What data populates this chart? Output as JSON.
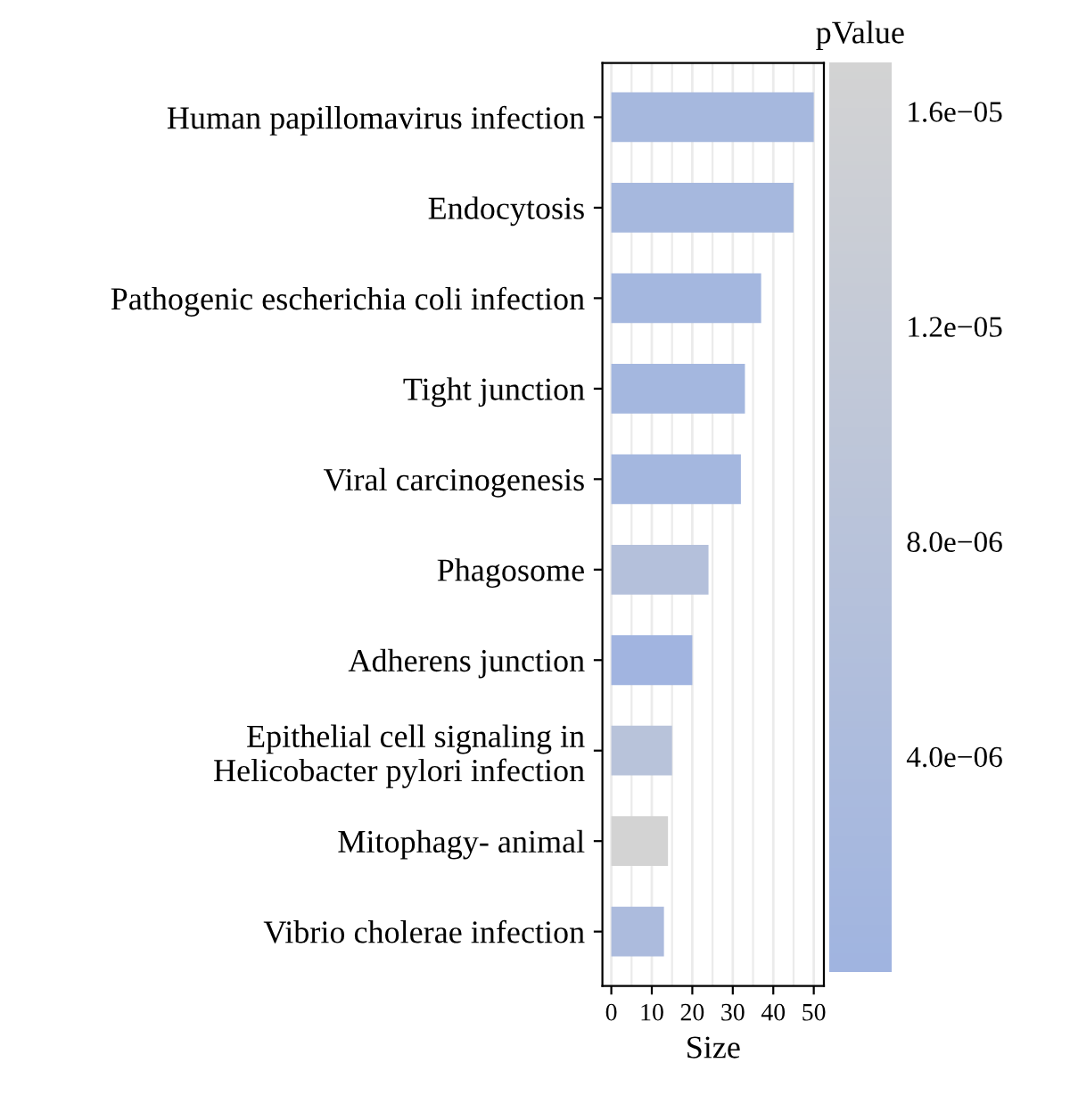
{
  "chart_data": {
    "type": "bar",
    "orientation": "horizontal",
    "xlabel": "Size",
    "clabel": "pValue",
    "categories": [
      "Human papillomavirus infection",
      "Endocytosis",
      "Pathogenic escherichia coli infection",
      "Tight junction",
      "Viral carcinogenesis",
      "Phagosome",
      "Adherens junction",
      "Epithelial cell signaling in\nHelicobacter pylori infection",
      "Mitophagy- animal",
      "Vibrio cholerae infection"
    ],
    "values": [
      50,
      45,
      37,
      33,
      32,
      24,
      20,
      15,
      14,
      13
    ],
    "cvalues": [
      2e-06,
      2e-06,
      1.5e-06,
      1.5e-06,
      1.5e-06,
      6.5e-06,
      2e-07,
      8e-06,
      1.69e-05,
      4e-06
    ],
    "xlim": [
      -2.2,
      52.5
    ],
    "xticks": [
      0,
      10,
      20,
      30,
      40,
      50
    ],
    "clim": [
      0,
      1.69e-05
    ],
    "cticks": [
      {
        "value": 4e-06,
        "label": "4.0e−06"
      },
      {
        "value": 8e-06,
        "label": "8.0e−06"
      },
      {
        "value": 1.2e-05,
        "label": "1.2e−05"
      },
      {
        "value": 1.6e-05,
        "label": "1.6e−05"
      }
    ],
    "grid": "x"
  }
}
